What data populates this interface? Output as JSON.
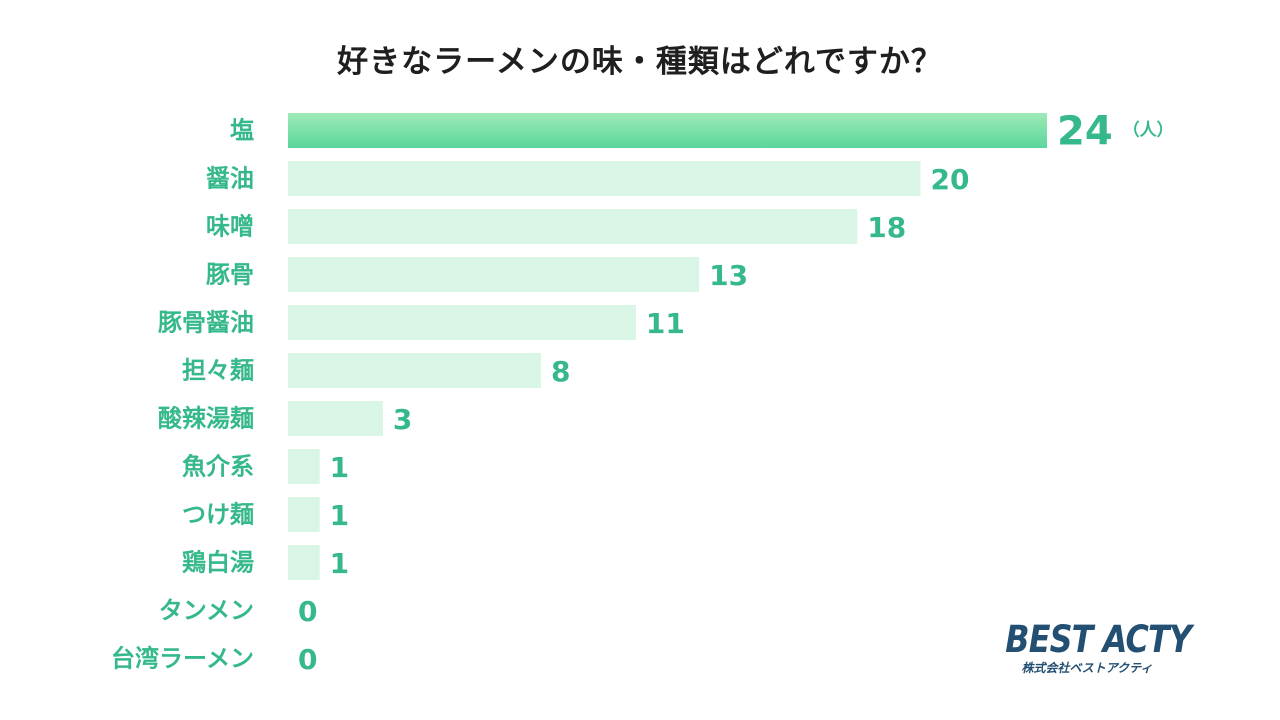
{
  "colors": {
    "highlight_bar_start": "#5ad69a",
    "highlight_bar_end": "#9eeab8",
    "bar": "#d8f5e6",
    "category_text": "#36b98a",
    "value_text": "#36b98a",
    "title_text": "#1f1f1f",
    "logo_text": "#234f73"
  },
  "logo": {
    "main": "BEST ACTY",
    "sub": "株式会社ベストアクティ"
  },
  "chart_data": {
    "type": "bar",
    "orientation": "horizontal",
    "title": "好きなラーメンの味・種類はどれですか？",
    "unit": "（人）",
    "categories": [
      "塩",
      "醤油",
      "味噌",
      "豚骨",
      "豚骨醤油",
      "担々麺",
      "酸辣湯麺",
      "魚介系",
      "つけ麺",
      "鶏白湯",
      "タンメン",
      "台湾ラーメン"
    ],
    "values": [
      24,
      20,
      18,
      13,
      11,
      8,
      3,
      1,
      1,
      1,
      0,
      0
    ],
    "xlim": [
      0,
      24
    ],
    "grid": false,
    "legend": "none",
    "highlight_index": 0
  }
}
